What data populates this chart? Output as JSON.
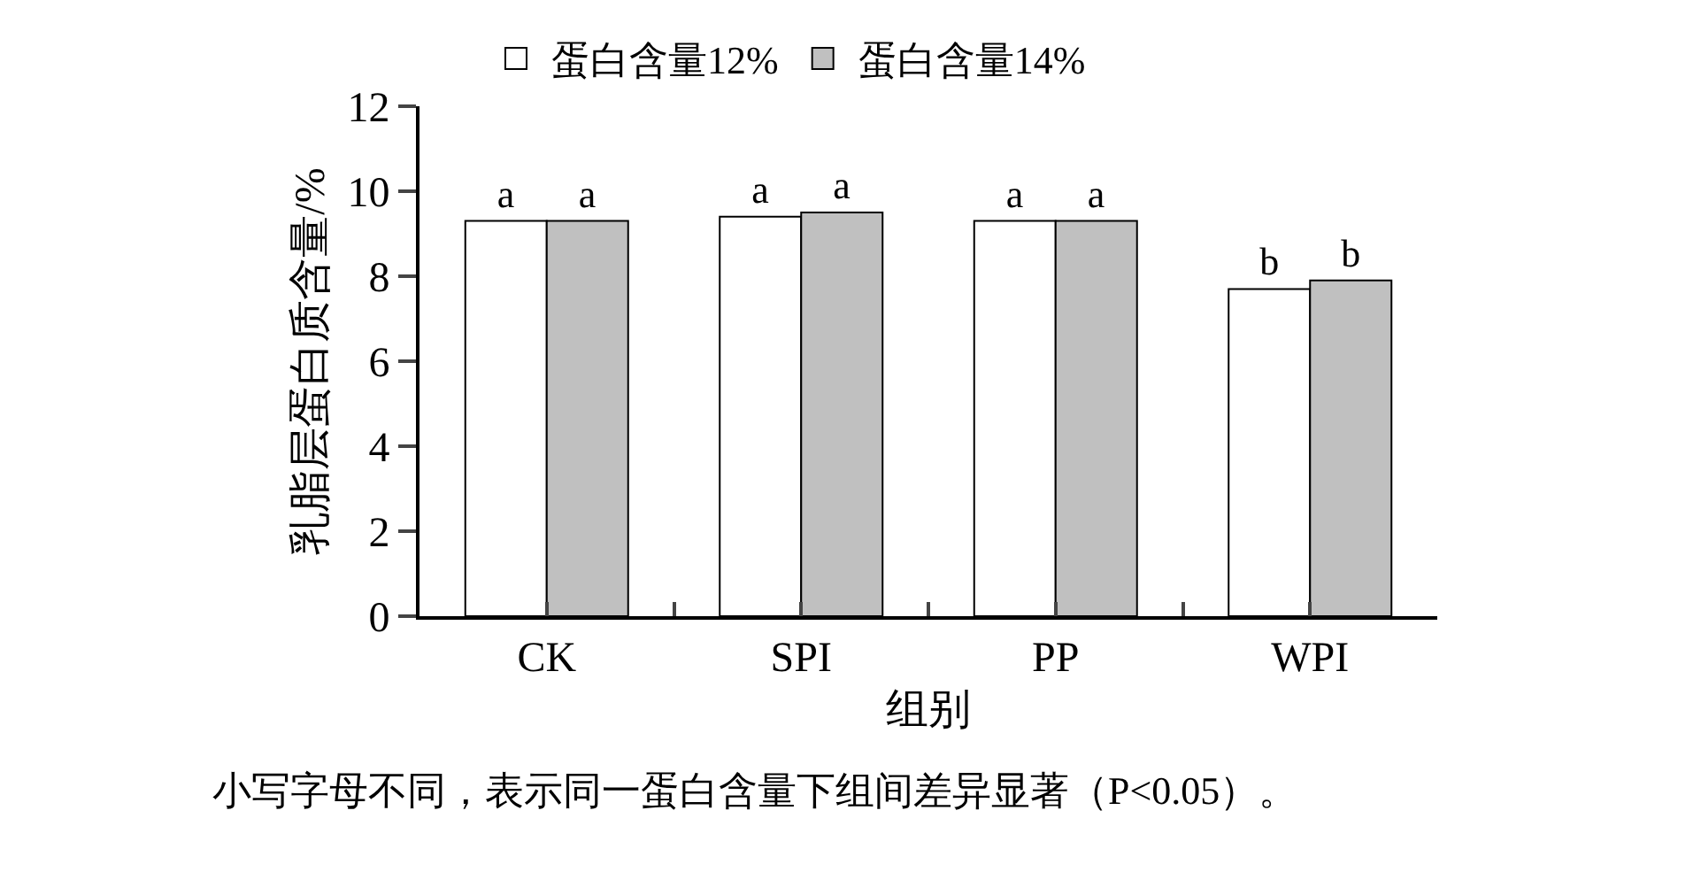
{
  "chart_data": {
    "type": "bar",
    "ylabel": "乳脂层蛋白质含量/%",
    "xlabel": "组别",
    "categories": [
      "CK",
      "SPI",
      "PP",
      "WPI"
    ],
    "series": [
      {
        "name": "蛋白含量12%",
        "color": "#ffffff",
        "values": [
          9.3,
          9.4,
          9.3,
          7.7
        ],
        "value_labels": [
          "a",
          "a",
          "a",
          "b"
        ]
      },
      {
        "name": "蛋白含量14%",
        "color": "#c0c0c0",
        "values": [
          9.3,
          9.5,
          9.3,
          7.9
        ],
        "value_labels": [
          "a",
          "a",
          "a",
          "b"
        ]
      }
    ],
    "ylim": [
      0,
      12
    ],
    "yticks": [
      0,
      2,
      4,
      6,
      8,
      10,
      12
    ],
    "legend": "top",
    "annotations": [
      "小写字母不同，表示同一蛋白含量下组间差异显著（P<0.05）。"
    ]
  }
}
